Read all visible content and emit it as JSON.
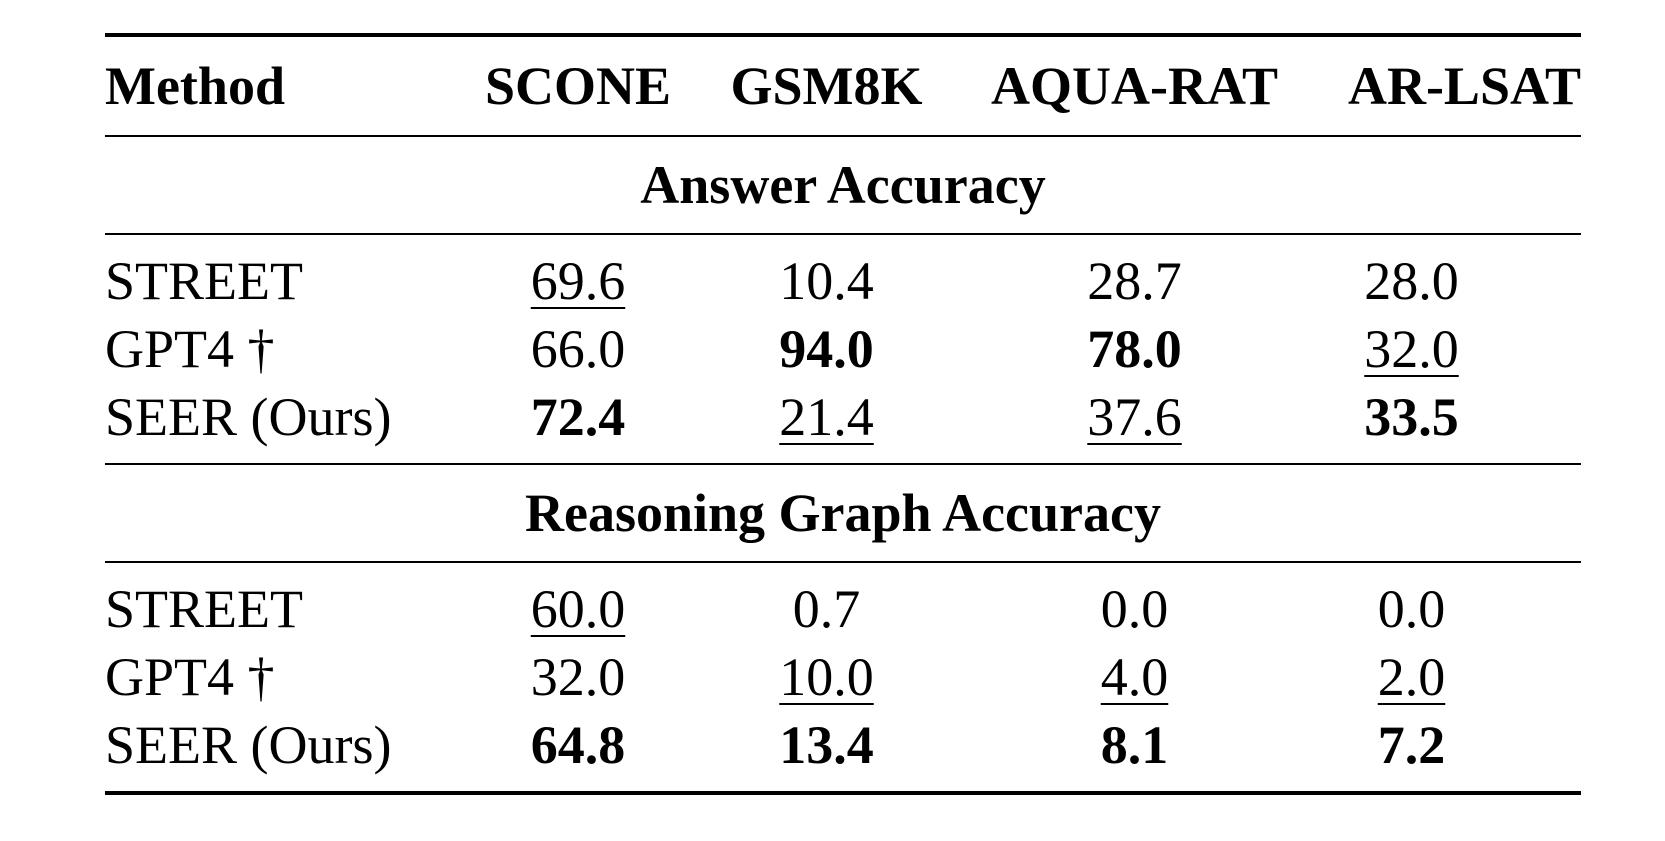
{
  "table": {
    "columns": [
      "Method",
      "SCONE",
      "GSM8K",
      "AQUA-RAT",
      "AR-LSAT"
    ],
    "sections": [
      {
        "title": "Answer Accuracy",
        "rows": [
          {
            "method": "STREET",
            "cells": [
              {
                "value": "69.6",
                "style": "underline"
              },
              {
                "value": "10.4",
                "style": "plain"
              },
              {
                "value": "28.7",
                "style": "plain"
              },
              {
                "value": "28.0",
                "style": "plain"
              }
            ]
          },
          {
            "method": "GPT4 †",
            "cells": [
              {
                "value": "66.0",
                "style": "plain"
              },
              {
                "value": "94.0",
                "style": "bold"
              },
              {
                "value": "78.0",
                "style": "bold"
              },
              {
                "value": "32.0",
                "style": "underline"
              }
            ]
          },
          {
            "method": "SEER (Ours)",
            "cells": [
              {
                "value": "72.4",
                "style": "bold"
              },
              {
                "value": "21.4",
                "style": "underline"
              },
              {
                "value": "37.6",
                "style": "underline"
              },
              {
                "value": "33.5",
                "style": "bold"
              }
            ]
          }
        ]
      },
      {
        "title": "Reasoning Graph Accuracy",
        "rows": [
          {
            "method": "STREET",
            "cells": [
              {
                "value": "60.0",
                "style": "underline"
              },
              {
                "value": "0.7",
                "style": "plain"
              },
              {
                "value": "0.0",
                "style": "plain"
              },
              {
                "value": "0.0",
                "style": "plain"
              }
            ]
          },
          {
            "method": "GPT4 †",
            "cells": [
              {
                "value": "32.0",
                "style": "plain"
              },
              {
                "value": "10.0",
                "style": "underline"
              },
              {
                "value": "4.0",
                "style": "underline"
              },
              {
                "value": "2.0",
                "style": "underline"
              }
            ]
          },
          {
            "method": "SEER (Ours)",
            "cells": [
              {
                "value": "64.8",
                "style": "bold"
              },
              {
                "value": "13.4",
                "style": "bold"
              },
              {
                "value": "8.1",
                "style": "bold"
              },
              {
                "value": "7.2",
                "style": "bold"
              }
            ]
          }
        ]
      }
    ]
  }
}
